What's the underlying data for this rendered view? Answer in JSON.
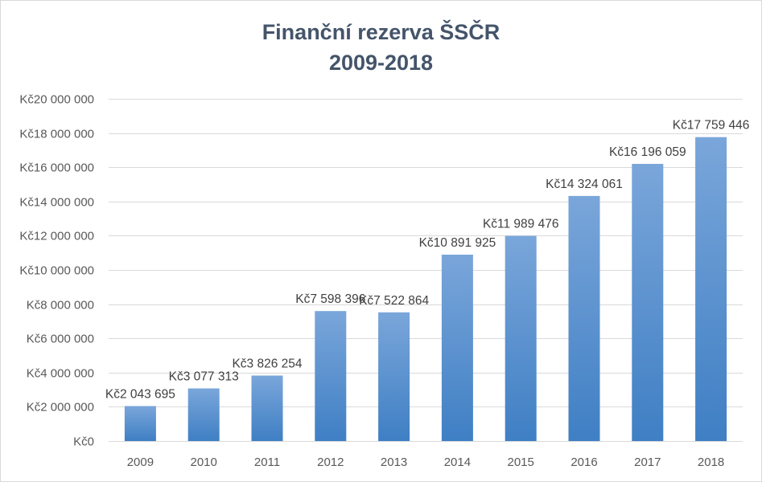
{
  "chart_data": {
    "type": "bar",
    "title_lines": [
      "Finanční rezerva ŠSČR",
      "2009-2018"
    ],
    "categories": [
      "2009",
      "2010",
      "2011",
      "2012",
      "2013",
      "2014",
      "2015",
      "2016",
      "2017",
      "2018"
    ],
    "values": [
      2043695,
      3077313,
      3826254,
      7598396,
      7522864,
      10891925,
      11989476,
      14324061,
      16196059,
      17759446
    ],
    "data_labels": [
      "Kč2 043 695",
      "Kč3 077 313",
      "Kč3 826 254",
      "Kč7 598 396",
      "Kč7 522 864",
      "Kč10 891 925",
      "Kč11 989 476",
      "Kč14 324 061",
      "Kč16 196 059",
      "Kč17 759 446"
    ],
    "yticks": [
      0,
      2000000,
      4000000,
      6000000,
      8000000,
      10000000,
      12000000,
      14000000,
      16000000,
      18000000,
      20000000
    ],
    "ytick_labels": [
      "Kč0",
      "Kč2 000 000",
      "Kč4 000 000",
      "Kč6 000 000",
      "Kč8 000 000",
      "Kč10 000 000",
      "Kč12 000 000",
      "Kč14 000 000",
      "Kč16 000 000",
      "Kč18 000 000",
      "Kč20 000 000"
    ],
    "ylim": [
      0,
      20000000
    ],
    "grid": true,
    "legend": "none",
    "bar_color_top": "#7aa6da",
    "bar_color_bottom": "#3f7fc4",
    "grid_color": "#d9d9d9",
    "title_color": "#44546a"
  }
}
